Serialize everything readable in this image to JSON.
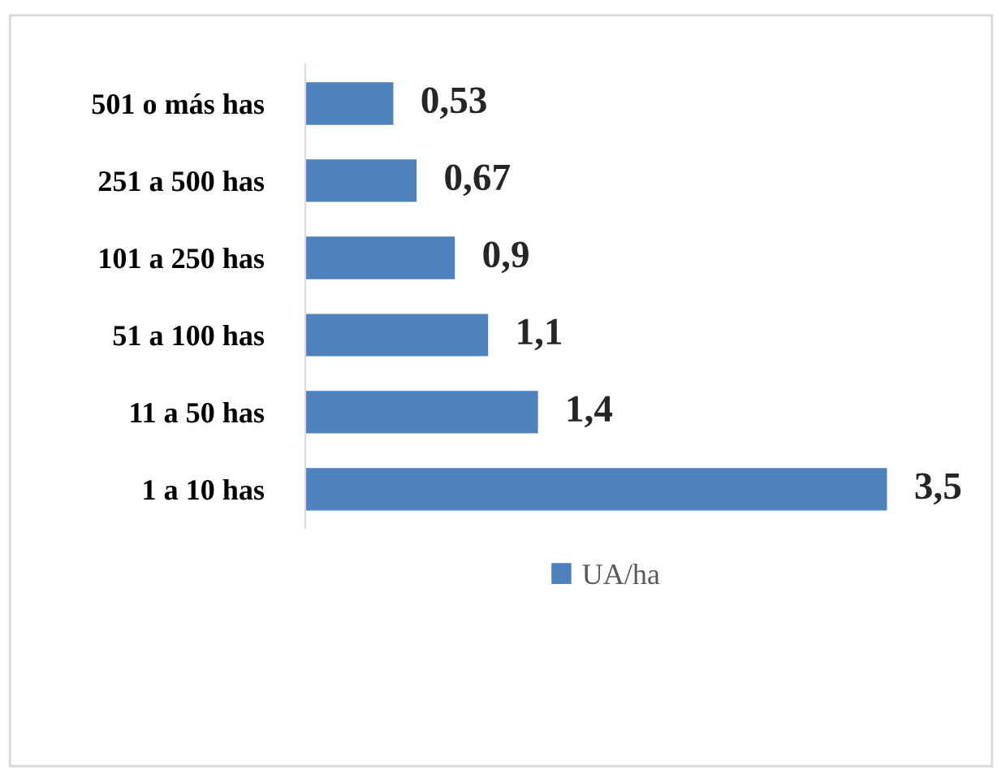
{
  "chart_data": {
    "type": "bar",
    "orientation": "horizontal",
    "categories": [
      "501 o más has",
      "251 a 500 has",
      "101 a 250 has",
      "51 a 100 has",
      "11 a 50 has",
      "1 a 10 has"
    ],
    "series": [
      {
        "name": "UA/ha",
        "color": "#4f81bd",
        "values": [
          0.53,
          0.67,
          0.9,
          1.1,
          1.4,
          3.5
        ],
        "value_labels": [
          "0,53",
          "0,67",
          "0,9",
          "1,1",
          "1,4",
          "3,5"
        ]
      }
    ],
    "legend": "bottom",
    "grid": false
  }
}
